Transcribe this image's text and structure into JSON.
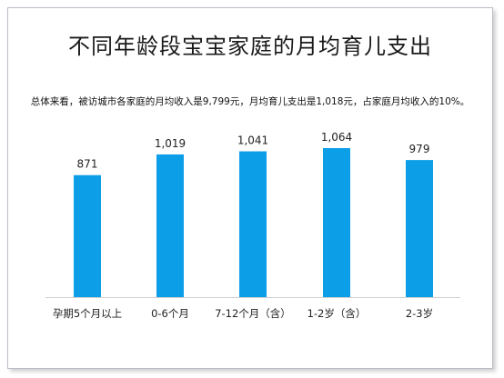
{
  "chart_data": {
    "type": "bar",
    "title": "不同年龄段宝宝家庭的月均育儿支出",
    "subtitle": "总体来看，被访城市各家庭的月均收入是9,799元，月均育儿支出是1,018元，占家庭月均收入的10%。",
    "categories": [
      "孕期5个月以上",
      "0-6个月",
      "7-12个月（含）",
      "1-2岁（含）",
      "2-3岁"
    ],
    "values": [
      871,
      1019,
      1041,
      1064,
      979
    ],
    "value_labels": [
      "871",
      "1,019",
      "1,041",
      "1,064",
      "979"
    ],
    "xlabel": "",
    "ylabel": "",
    "ylim": [
      0,
      1064
    ],
    "grid": false,
    "legend": "none",
    "bar_color": "#0d9ee8"
  }
}
